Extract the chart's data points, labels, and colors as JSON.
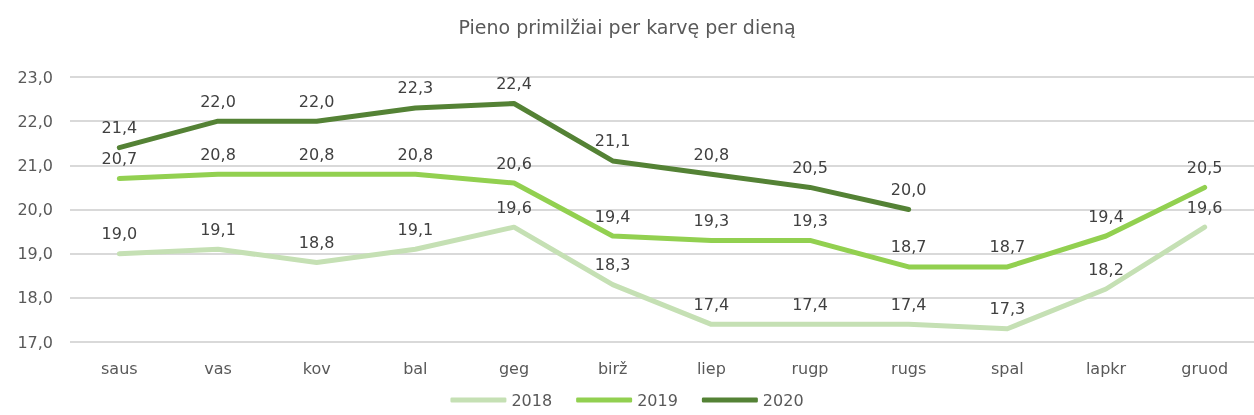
{
  "chart_data": {
    "type": "line",
    "title": "Pieno primilžiai per karvę per dieną",
    "categories": [
      "saus",
      "vas",
      "kov",
      "bal",
      "geg",
      "birž",
      "liep",
      "rugp",
      "rugs",
      "spal",
      "lapkr",
      "gruod"
    ],
    "series": [
      {
        "name": "2018",
        "color": "#c5e0b4",
        "values": [
          19.0,
          19.1,
          18.8,
          19.1,
          19.6,
          18.3,
          17.4,
          17.4,
          17.4,
          17.3,
          18.2,
          19.6
        ],
        "value_labels": [
          "19,0",
          "19,1",
          "18,8",
          "19,1",
          "19,6",
          "18,3",
          "17,4",
          "17,4",
          "17,4",
          "17,3",
          "18,2",
          "19,6"
        ]
      },
      {
        "name": "2019",
        "color": "#92d050",
        "values": [
          20.7,
          20.8,
          20.8,
          20.8,
          20.6,
          19.4,
          19.3,
          19.3,
          18.7,
          18.7,
          19.4,
          20.5
        ],
        "value_labels": [
          "20,7",
          "20,8",
          "20,8",
          "20,8",
          "20,6",
          "19,4",
          "19,3",
          "19,3",
          "18,7",
          "18,7",
          "19,4",
          "20,5"
        ]
      },
      {
        "name": "2020",
        "color": "#548235",
        "values": [
          21.4,
          22.0,
          22.0,
          22.3,
          22.4,
          21.1,
          20.8,
          20.5,
          20.0,
          null,
          null,
          null
        ],
        "value_labels": [
          "21,4",
          "22,0",
          "22,0",
          "22,3",
          "22,4",
          "21,1",
          "20,8",
          "20,5",
          "20,0",
          null,
          null,
          null
        ]
      }
    ],
    "ylim": [
      17,
      23
    ],
    "yticks": [
      {
        "value": 17,
        "label": "17,0"
      },
      {
        "value": 18,
        "label": "18,0"
      },
      {
        "value": 19,
        "label": "19,0"
      },
      {
        "value": 20,
        "label": "20,0"
      },
      {
        "value": 21,
        "label": "21,0"
      },
      {
        "value": 22,
        "label": "22,0"
      },
      {
        "value": 23,
        "label": "23,0"
      }
    ],
    "grid": "y",
    "legend": "bottom",
    "marker": "none",
    "line_style": "solid"
  }
}
